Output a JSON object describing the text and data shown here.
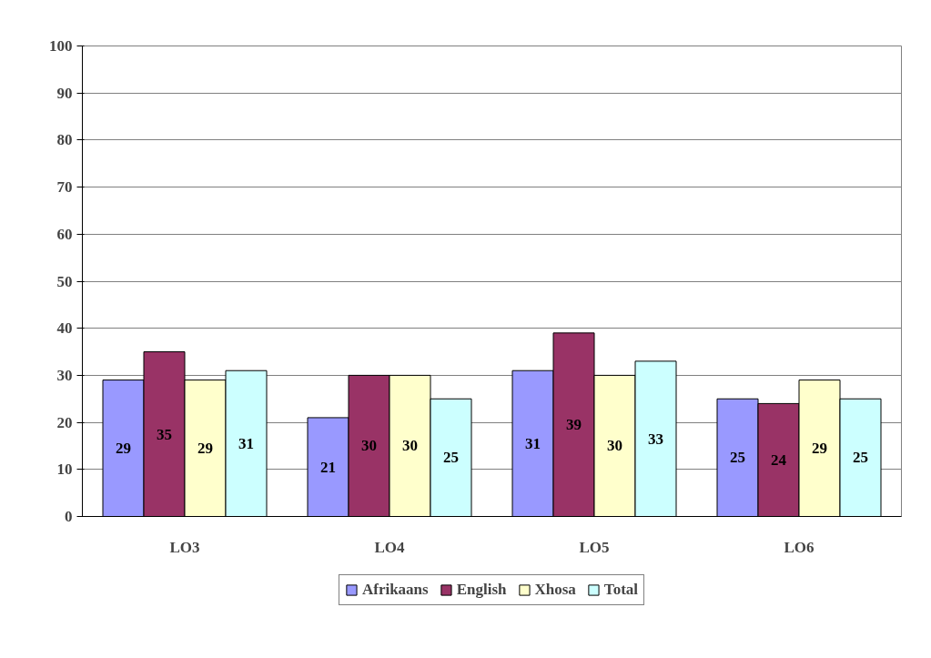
{
  "chart_data": {
    "type": "bar",
    "categories": [
      "LO3",
      "LO4",
      "LO5",
      "LO6"
    ],
    "series": [
      {
        "name": "Afrikaans",
        "color": "#9999ff",
        "values": [
          29,
          21,
          31,
          25
        ]
      },
      {
        "name": "English",
        "color": "#993366",
        "values": [
          35,
          30,
          39,
          24
        ]
      },
      {
        "name": "Xhosa",
        "color": "#ffffcc",
        "values": [
          29,
          30,
          30,
          29
        ]
      },
      {
        "name": "Total",
        "color": "#ccffff",
        "values": [
          31,
          25,
          33,
          25
        ]
      }
    ],
    "ylim": [
      0,
      100
    ],
    "yticks": [
      0,
      10,
      20,
      30,
      40,
      50,
      60,
      70,
      80,
      90,
      100
    ],
    "grid": "y",
    "legend": "bottom",
    "data_labels": true
  }
}
